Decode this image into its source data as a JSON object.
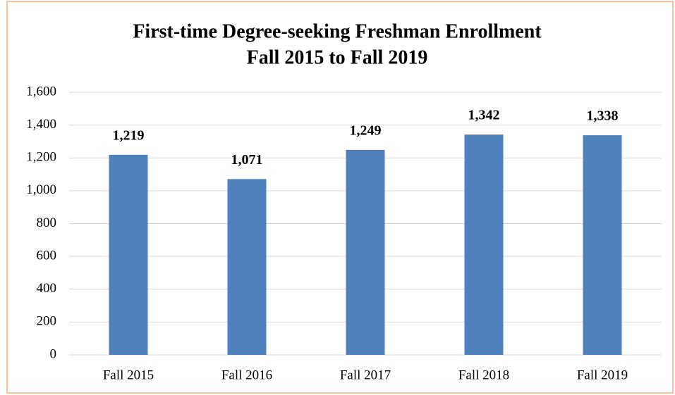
{
  "chart_data": {
    "type": "bar",
    "title": "First-time Degree-seeking Freshman Enrollment",
    "subtitle": "Fall 2015 to Fall 2019",
    "categories": [
      "Fall 2015",
      "Fall 2016",
      "Fall 2017",
      "Fall 2018",
      "Fall 2019"
    ],
    "values": [
      1219,
      1071,
      1249,
      1342,
      1338
    ],
    "value_labels": [
      "1,219",
      "1,071",
      "1,249",
      "1,342",
      "1,338"
    ],
    "color": "#4f81bd",
    "ylim": [
      0,
      1600
    ],
    "yticks": [
      0,
      200,
      400,
      600,
      800,
      {
        "value": 1000,
        "label": "1,000"
      },
      {
        "value": 1200,
        "label": "1,200"
      },
      {
        "value": 1400,
        "label": "1,400"
      },
      {
        "value": 1600,
        "label": "1,600"
      }
    ],
    "grid": true
  }
}
